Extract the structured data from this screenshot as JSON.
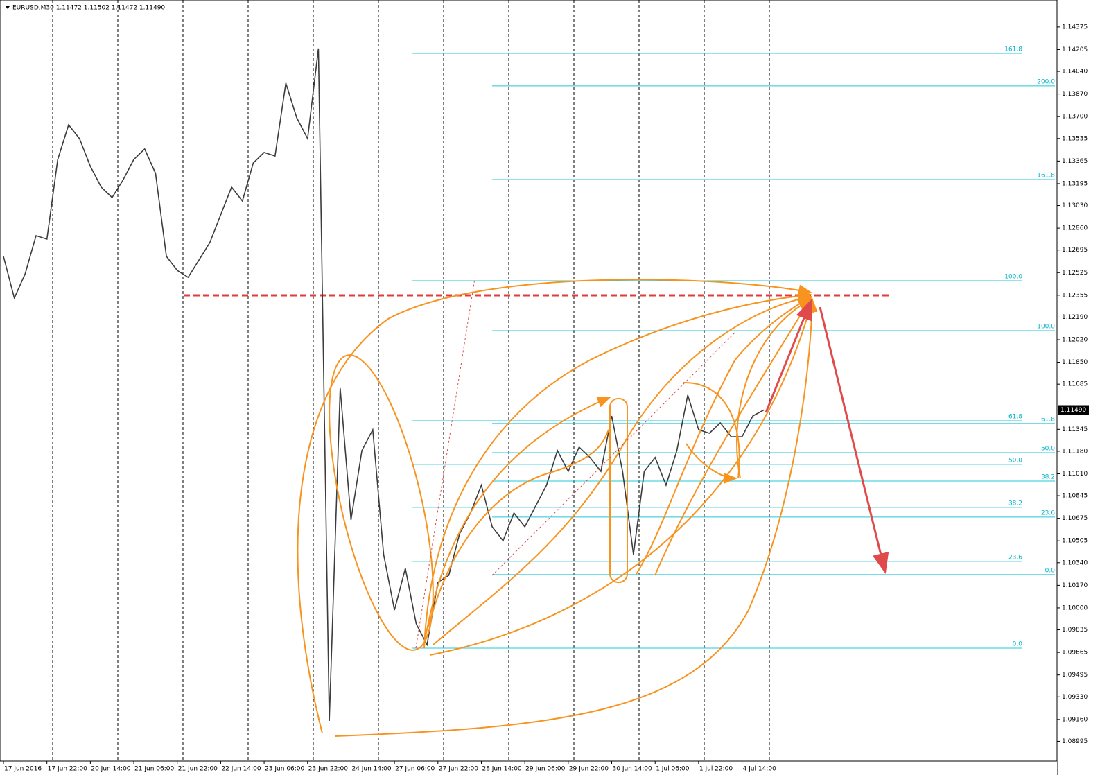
{
  "chart_data": {
    "type": "line",
    "title": "EURUSD,M30  1.11472 1.11502 1.11472 1.11490",
    "categories": [
      "17 Jun 2016",
      null,
      null,
      null,
      "17 Jun 22:00",
      null,
      null,
      null,
      "20 Jun 14:00",
      null,
      null,
      null,
      "21 Jun 06:00",
      null,
      null,
      null,
      "21 Jun 22:00",
      null,
      null,
      null,
      "22 Jun 14:00",
      null,
      null,
      null,
      "23 Jun 06:00",
      null,
      null,
      null,
      "23 Jun 22:00",
      null,
      null,
      null,
      "24 Jun 14:00",
      null,
      null,
      null,
      "27 Jun 06:00",
      null,
      null,
      null,
      "27 Jun 22:00",
      null,
      null,
      null,
      "28 Jun 14:00",
      null,
      null,
      null,
      "29 Jun 06:00",
      null,
      null,
      null,
      "29 Jun 22:00",
      null,
      null,
      null,
      "30 Jun 14:00",
      null,
      null,
      null,
      "1 Jul 06:00",
      null,
      null,
      null,
      "1 Jul 22:00",
      null,
      null,
      null,
      "4 Jul 14:00",
      null,
      null
    ],
    "series": [
      {
        "color": "#3c3c3c",
        "values": [
          1.12647,
          1.12333,
          1.12516,
          1.12803,
          1.12777,
          1.13377,
          1.13638,
          1.13534,
          1.13325,
          1.13169,
          1.1309,
          1.13221,
          1.13377,
          1.13456,
          1.13273,
          1.12647,
          1.12542,
          1.1249,
          1.1262,
          1.12751,
          1.1296,
          1.13169,
          1.13064,
          1.13351,
          1.1343,
          1.13403,
          1.13952,
          1.13691,
          1.13534,
          1.14213,
          1.09149,
          1.11655,
          1.10663,
          1.11185,
          1.11342,
          1.10402,
          1.09984,
          1.10298,
          1.0988,
          1.09723,
          1.10193,
          1.10245,
          1.10559,
          1.10715,
          1.10924,
          1.10611,
          1.10506,
          1.10715,
          1.10611,
          1.10767,
          1.10924,
          1.11185,
          1.11028,
          1.11211,
          1.11133,
          1.11028,
          1.11446,
          1.11028,
          1.10402,
          1.11028,
          1.11133,
          1.10924,
          1.11185,
          1.11603,
          1.11342,
          1.11315,
          1.11394,
          1.11289,
          1.11289,
          1.11446,
          1.1149
        ]
      }
    ],
    "ylim": [
      1.08846,
      1.14578
    ],
    "yticks": [
      1.14375,
      1.14205,
      {
        "value": 1.1404,
        "label": "1.14040"
      },
      {
        "value": 1.1387,
        "label": "1.13870"
      },
      {
        "value": 1.137,
        "label": "1.13700"
      },
      1.13535,
      1.13365,
      1.13195,
      {
        "value": 1.1303,
        "label": "1.13030"
      },
      {
        "value": 1.1286,
        "label": "1.12860"
      },
      1.12695,
      1.12525,
      1.12355,
      {
        "value": 1.1219,
        "label": "1.12190"
      },
      {
        "value": 1.1202,
        "label": "1.12020"
      },
      {
        "value": 1.1185,
        "label": "1.11850"
      },
      1.11685,
      1.11345,
      {
        "value": 1.1118,
        "label": "1.11180"
      },
      {
        "value": 1.1101,
        "label": "1.11010"
      },
      1.10845,
      1.10675,
      1.10505,
      {
        "value": 1.1034,
        "label": "1.10340"
      },
      {
        "value": 1.1017,
        "label": "1.10170"
      },
      {
        "value": 1.1,
        "label": "1.10000"
      },
      1.09835,
      1.09665,
      1.09495,
      {
        "value": 1.0933,
        "label": "1.09330"
      },
      {
        "value": 1.0916,
        "label": "1.09160"
      },
      1.08995
    ],
    "last_price": {
      "value": 1.1149,
      "label": "1.11490"
    },
    "resistance_level": 1.12354,
    "fibonacci": [
      {
        "levels": [
          {
            "value": 1.14176,
            "label": "161.8"
          },
          {
            "value": 1.12464,
            "label": "100.0"
          },
          {
            "value": 1.11409,
            "label": "61.8"
          },
          {
            "value": 1.11081,
            "label": "50.0"
          },
          {
            "value": 1.10757,
            "label": "38.2"
          },
          {
            "value": 1.1035,
            "label": "23.6"
          },
          {
            "value": 1.09697,
            "label": "0.0"
          }
        ]
      },
      {
        "levels": [
          {
            "value": 1.13931,
            "label": "200.0"
          },
          {
            "value": 1.13226,
            "label": "161.8"
          },
          {
            "value": 1.12088,
            "label": "100.0"
          },
          {
            "value": 1.11389,
            "label": "61.8"
          },
          {
            "value": 1.11169,
            "label": "50.0"
          },
          {
            "value": 1.10955,
            "label": "38.2"
          },
          {
            "value": 1.10684,
            "label": "23.6"
          },
          {
            "value": 1.10251,
            "label": "0.0"
          }
        ]
      }
    ]
  }
}
